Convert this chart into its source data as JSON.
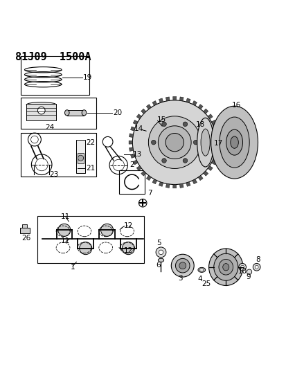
{
  "title": "81J09  1500A",
  "bg_color": "#ffffff",
  "line_color": "#000000",
  "title_fontsize": 11,
  "label_fontsize": 7.5,
  "fig_width": 4.14,
  "fig_height": 5.33,
  "dpi": 100
}
